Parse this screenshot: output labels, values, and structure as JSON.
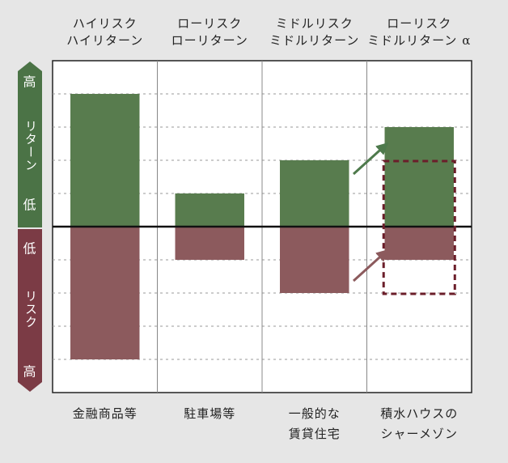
{
  "chart_data": {
    "type": "bar",
    "headers": [
      [
        "ハイリスク",
        "ハイリターン"
      ],
      [
        "ローリスク",
        "ローリターン"
      ],
      [
        "ミドルリスク",
        "ミドルリターン"
      ],
      [
        "ローリスク",
        "ミドルリターン α"
      ]
    ],
    "categories": [
      [
        "金融商品等"
      ],
      [
        "駐車場等"
      ],
      [
        "一般的な",
        "賃貸住宅"
      ],
      [
        "積水ハウスの",
        "シャーメゾン"
      ]
    ],
    "series": [
      {
        "name": "リターン",
        "color": "#587c4e",
        "high": "高",
        "low": "低",
        "values": [
          4,
          1,
          2,
          3
        ]
      },
      {
        "name": "リスク",
        "color": "#8c5a5d",
        "high": "高",
        "low": "低",
        "values": [
          -4,
          -1,
          -2,
          -1
        ]
      }
    ],
    "ylim": [
      -5,
      5
    ],
    "yticks": [
      -4,
      -3,
      -2,
      -1,
      1,
      2,
      3,
      4
    ],
    "grid": true
  }
}
